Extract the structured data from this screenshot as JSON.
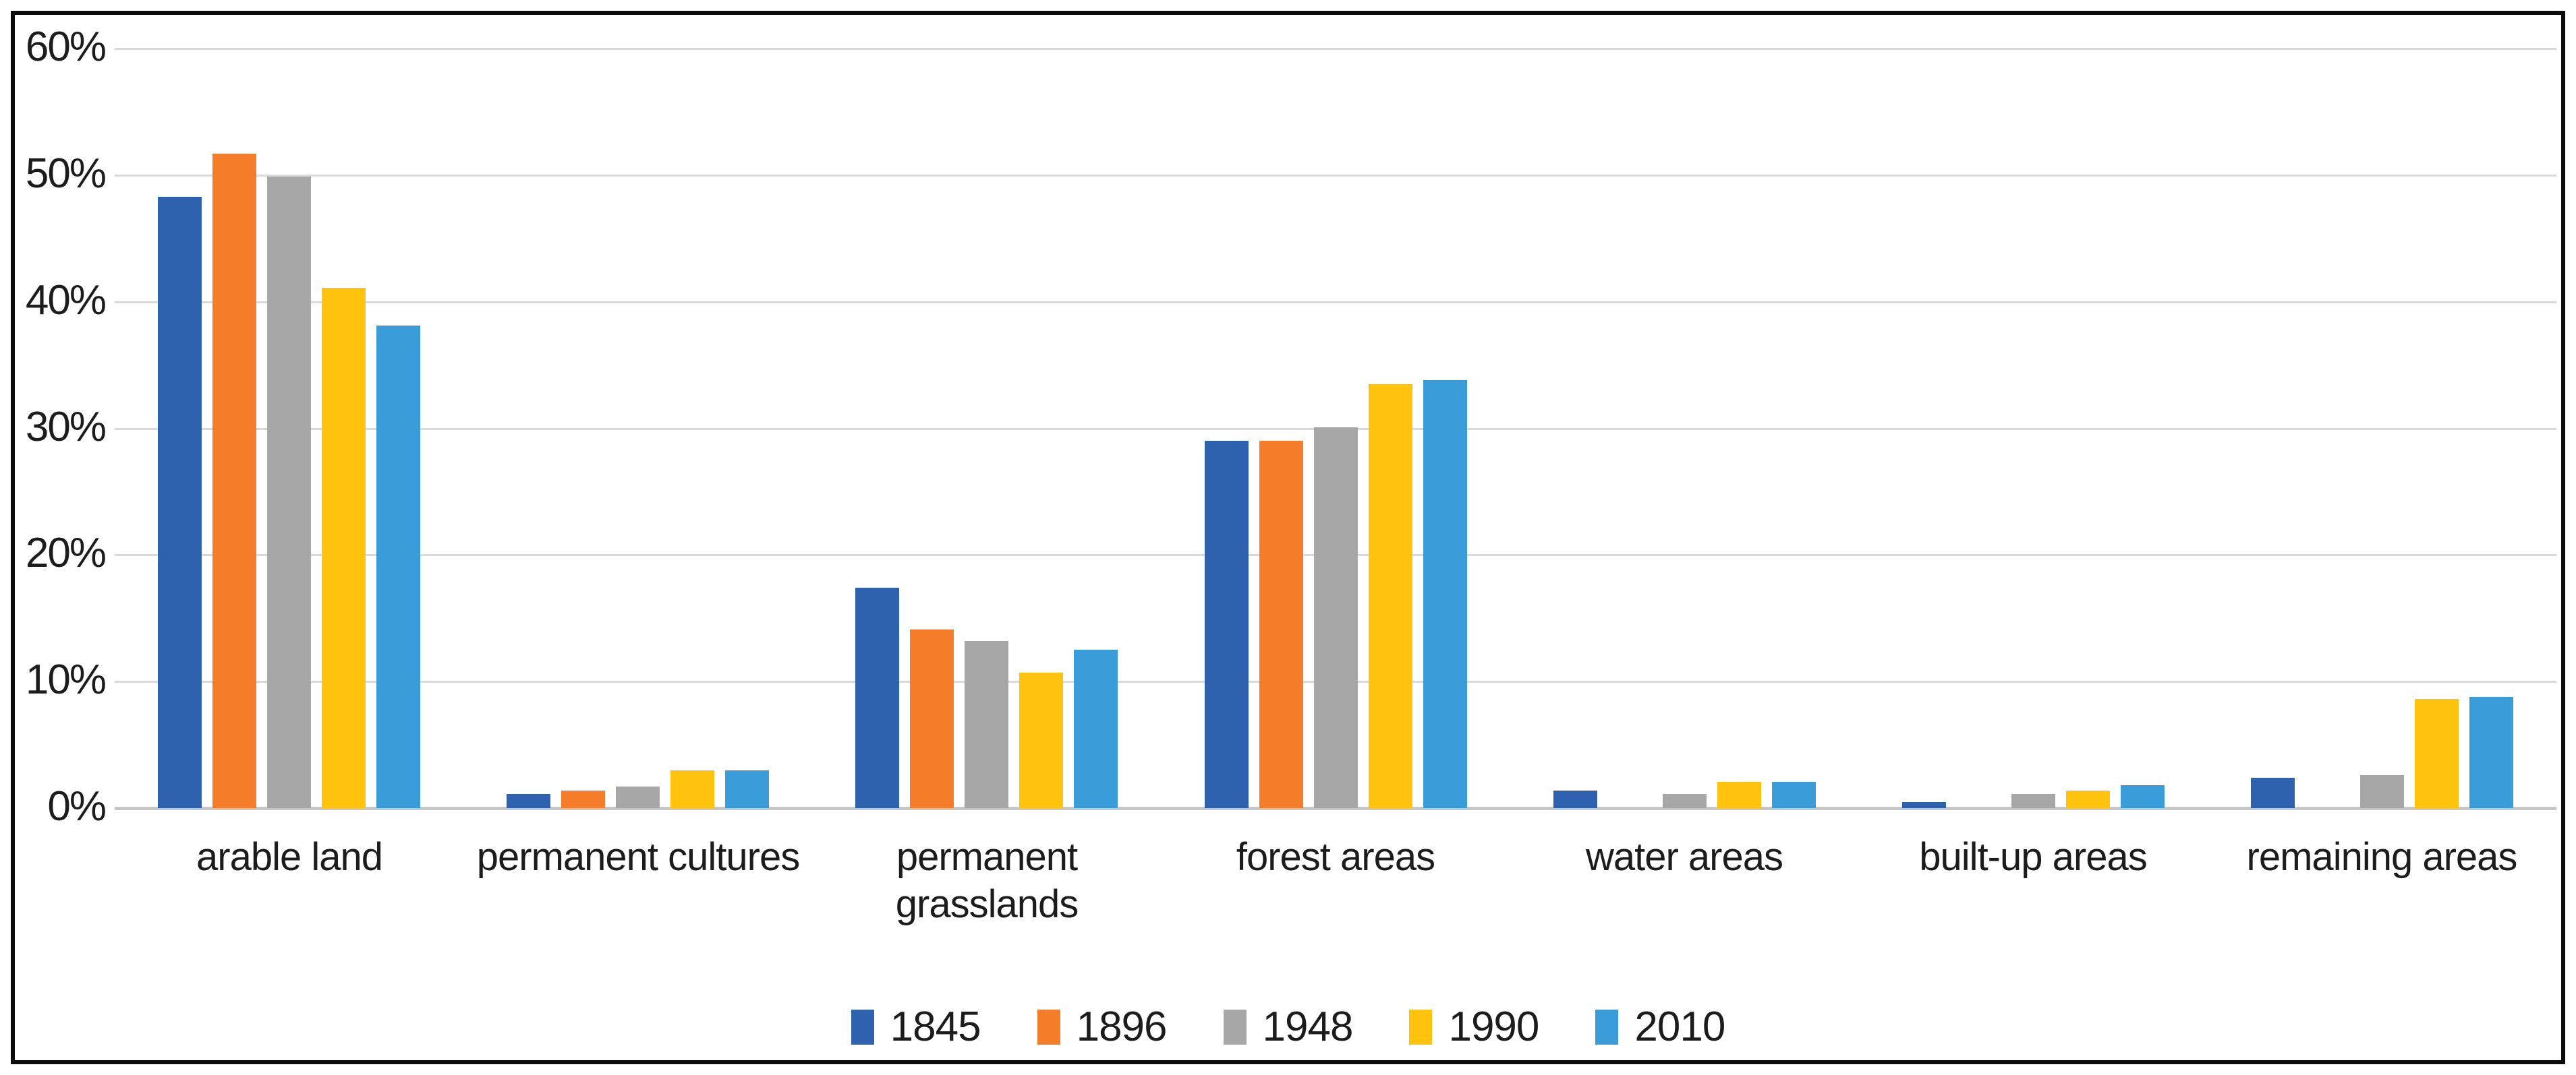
{
  "chart_data": {
    "type": "bar",
    "title": "",
    "xlabel": "",
    "ylabel": "",
    "categories": [
      "arable land",
      "permanent cultures",
      "permanent grasslands",
      "forest areas",
      "water areas",
      "built-up areas",
      "remaining areas"
    ],
    "series": [
      {
        "name": "1845",
        "color": "#2E62AE",
        "values": [
          48.3,
          1.1,
          17.4,
          29.0,
          1.4,
          0.5,
          2.4
        ]
      },
      {
        "name": "1896",
        "color": "#F57C28",
        "values": [
          51.7,
          1.4,
          14.1,
          29.0,
          0,
          0,
          0
        ]
      },
      {
        "name": "1948",
        "color": "#A7A7A7",
        "values": [
          49.9,
          1.7,
          13.2,
          30.1,
          1.1,
          1.1,
          2.6
        ]
      },
      {
        "name": "1990",
        "color": "#FFC20D",
        "values": [
          41.1,
          3.0,
          10.7,
          33.5,
          2.1,
          1.4,
          8.6
        ]
      },
      {
        "name": "2010",
        "color": "#3A9CD9",
        "values": [
          38.1,
          3.0,
          12.5,
          33.8,
          2.1,
          1.8,
          8.8
        ]
      }
    ],
    "y_ticks": [
      "0%",
      "10%",
      "20%",
      "30%",
      "40%",
      "50%",
      "60%"
    ],
    "ylim": [
      0,
      60
    ],
    "grid": true,
    "legend_position": "bottom"
  },
  "style": {
    "background": "#FFFFFF",
    "grid_color": "#D9D9D9",
    "baseline_color": "#C6C6C6",
    "text_color": "#1C1C1C",
    "border_color": "#0B0B0B"
  }
}
